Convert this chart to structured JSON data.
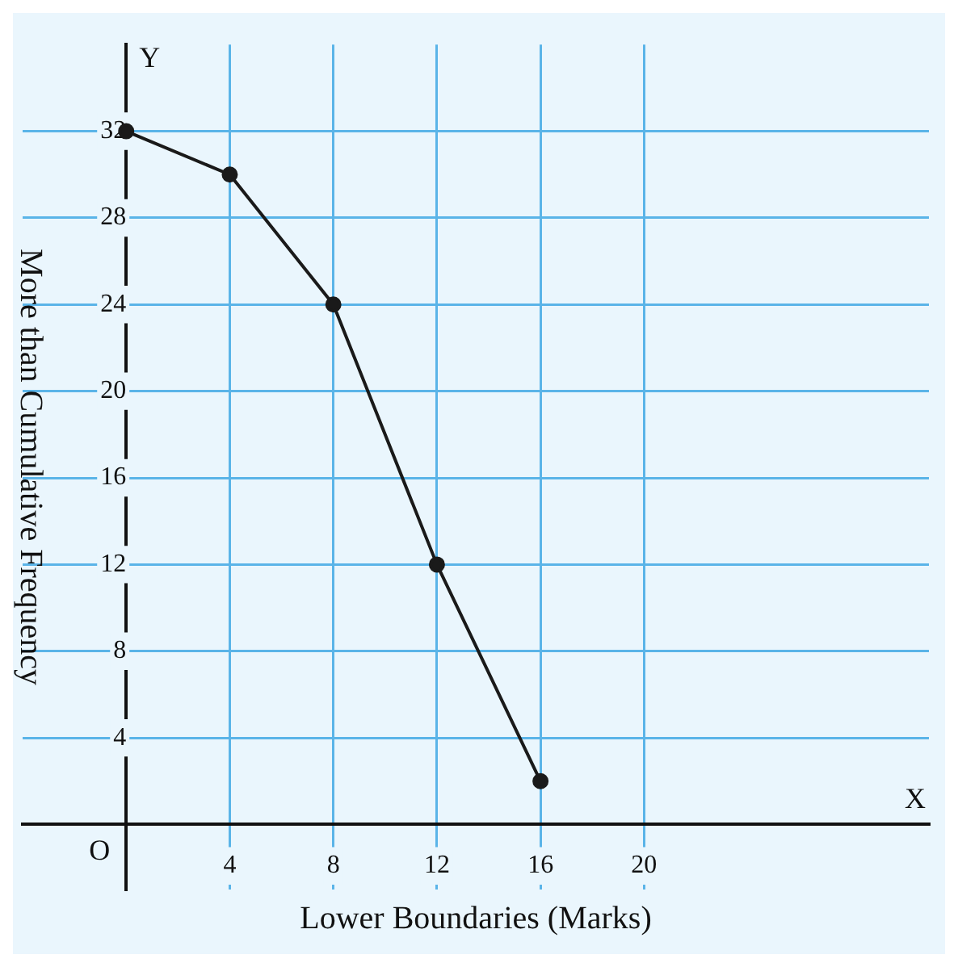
{
  "chart_data": {
    "type": "line",
    "xlabel": "Lower Boundaries (Marks)",
    "ylabel": "More than Cumulative Frequency",
    "x": [
      0,
      4,
      8,
      12,
      16
    ],
    "series": [
      {
        "color": "#1a1a1a",
        "values": [
          32,
          30,
          24,
          12,
          2
        ]
      }
    ],
    "xlim": [
      -4,
      31
    ],
    "ylim": [
      -3,
      36
    ],
    "xticks": [
      4,
      8,
      12,
      16,
      20
    ],
    "yticks": [
      4,
      8,
      12,
      16,
      20,
      24,
      28,
      32
    ],
    "grid": true,
    "marker": "circle",
    "line_style": "solid",
    "legend": false,
    "annotations": [
      "O",
      "X",
      "Y"
    ]
  }
}
